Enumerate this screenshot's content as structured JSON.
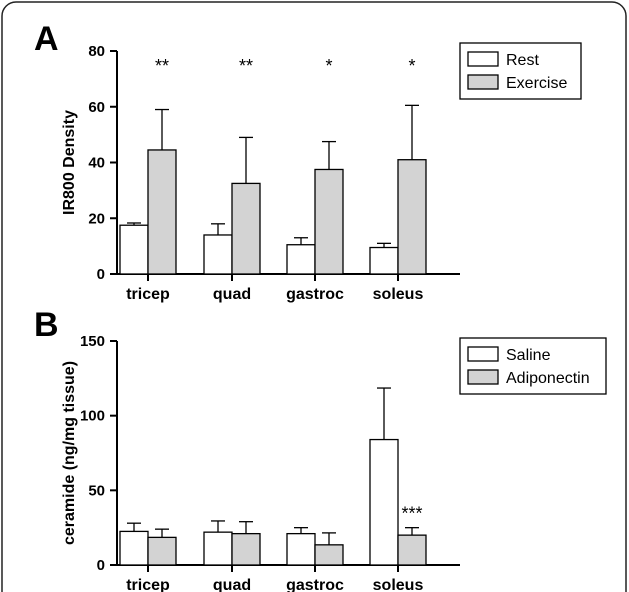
{
  "panel_letters": [
    "A",
    "B"
  ],
  "chart_data": [
    {
      "type": "bar",
      "panel": "A",
      "ylabel": "IR800 Density",
      "ylim": [
        0,
        80
      ],
      "yticks": [
        "0",
        "20",
        "40",
        "60",
        "80"
      ],
      "categories": [
        "tricep",
        "quad",
        "gastroc",
        "soleus"
      ],
      "legend_position": "top-right",
      "series": [
        {
          "name": "Rest",
          "color": "#ffffff",
          "values": [
            17.5,
            14,
            10.5,
            9.5
          ],
          "errors": [
            0.8,
            4,
            2.5,
            1.5
          ]
        },
        {
          "name": "Exercise",
          "color": "#d3d3d3",
          "values": [
            44.5,
            32.5,
            37.5,
            41
          ],
          "errors": [
            14.5,
            16.5,
            10,
            19.5
          ]
        }
      ],
      "annotations": [
        "**",
        "**",
        "*",
        "*"
      ]
    },
    {
      "type": "bar",
      "panel": "B",
      "ylabel": "ceramide  (ng/mg tissue)",
      "ylim": [
        0,
        150
      ],
      "yticks": [
        "0",
        "50",
        "100",
        "150"
      ],
      "categories": [
        "tricep",
        "quad",
        "gastroc",
        "soleus"
      ],
      "legend_position": "top-right",
      "series": [
        {
          "name": "Saline",
          "color": "#ffffff",
          "values": [
            22.5,
            22,
            21,
            84
          ],
          "errors": [
            5.5,
            7.5,
            4,
            34.5
          ]
        },
        {
          "name": "Adiponectin",
          "color": "#d3d3d3",
          "values": [
            18.5,
            21,
            13.5,
            20
          ],
          "errors": [
            5.5,
            8,
            8,
            5
          ]
        }
      ],
      "annotations": [
        "",
        "",
        "",
        "***"
      ]
    }
  ]
}
